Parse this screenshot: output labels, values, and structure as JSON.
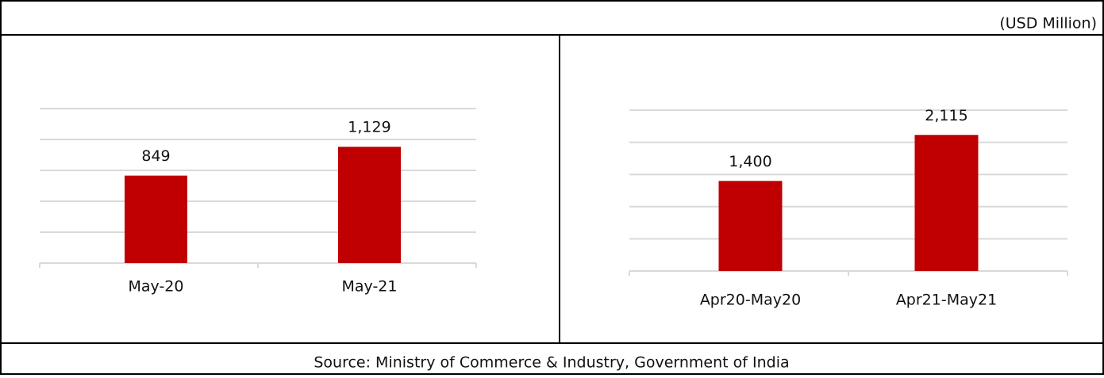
{
  "unit_note": "(USD Million)",
  "source": "Source: Ministry of Commerce & Industry, Government of India",
  "chart_data": [
    {
      "type": "bar",
      "categories": [
        "May-20",
        "May-21"
      ],
      "values": [
        849,
        1129
      ],
      "value_labels": [
        "849",
        "1,129"
      ],
      "color": "#c00000",
      "ylim": [
        0,
        1500
      ],
      "yticks": [
        0,
        300,
        600,
        900,
        1200,
        1500
      ],
      "grid": true
    },
    {
      "type": "bar",
      "categories": [
        "Apr20-May20",
        "Apr21-May21"
      ],
      "values": [
        1400,
        2115
      ],
      "value_labels": [
        "1,400",
        "2,115"
      ],
      "color": "#c00000",
      "ylim": [
        0,
        2500
      ],
      "yticks": [
        0,
        500,
        1000,
        1500,
        2000,
        2500
      ],
      "grid": true
    }
  ]
}
